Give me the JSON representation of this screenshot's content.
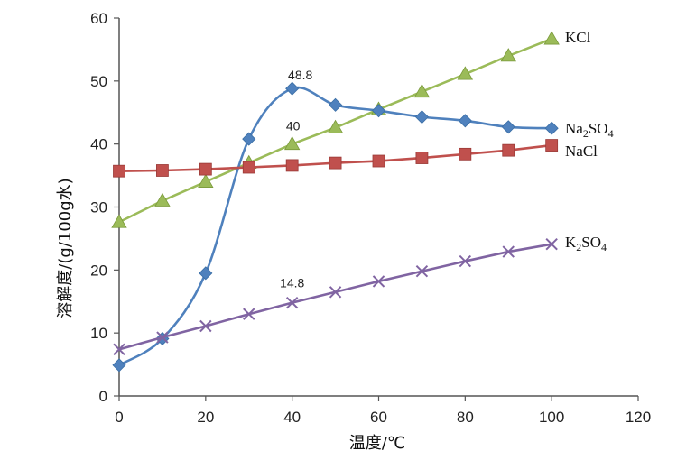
{
  "chart_data": {
    "type": "line",
    "title": "",
    "xlabel": "温度/℃",
    "ylabel": "溶解度/(g/100g水)",
    "xlim": [
      0,
      120
    ],
    "ylim": [
      0,
      60
    ],
    "xticks": [
      0,
      20,
      40,
      60,
      80,
      100,
      120
    ],
    "yticks": [
      0,
      10,
      20,
      30,
      40,
      50,
      60
    ],
    "grid": false,
    "series": [
      {
        "name": "KCl",
        "label_main": "KCl",
        "sub1": "",
        "mid": "",
        "sub2": "",
        "color": "#9BBB59",
        "marker": "triangle",
        "x": [
          0,
          10,
          20,
          30,
          40,
          50,
          60,
          70,
          80,
          90,
          100
        ],
        "y": [
          27.6,
          31.0,
          34.0,
          37.0,
          40.0,
          42.6,
          45.5,
          48.3,
          51.1,
          54.0,
          56.7
        ]
      },
      {
        "name": "Na2SO4",
        "label_main": "Na",
        "sub1": "2",
        "mid": "SO",
        "sub2": "4",
        "color": "#4F81BD",
        "marker": "diamond",
        "smooth": true,
        "x": [
          0,
          10,
          20,
          30,
          40,
          50,
          60,
          70,
          80,
          90,
          100
        ],
        "y": [
          4.9,
          9.1,
          19.5,
          40.8,
          48.8,
          46.2,
          45.3,
          44.3,
          43.7,
          42.7,
          42.5
        ]
      },
      {
        "name": "NaCl",
        "label_main": "NaCl",
        "sub1": "",
        "mid": "",
        "sub2": "",
        "color": "#C0504D",
        "marker": "square",
        "x": [
          0,
          10,
          20,
          30,
          40,
          50,
          60,
          70,
          80,
          90,
          100
        ],
        "y": [
          35.7,
          35.8,
          36.0,
          36.3,
          36.6,
          37.0,
          37.3,
          37.8,
          38.4,
          39.0,
          39.8
        ]
      },
      {
        "name": "K2SO4",
        "label_main": "K",
        "sub1": "2",
        "mid": "SO",
        "sub2": "4",
        "color": "#8064A2",
        "marker": "x",
        "x": [
          0,
          10,
          20,
          30,
          40,
          50,
          60,
          70,
          80,
          90,
          100
        ],
        "y": [
          7.4,
          9.3,
          11.1,
          13.0,
          14.8,
          16.5,
          18.2,
          19.8,
          21.4,
          22.9,
          24.1
        ]
      }
    ],
    "annotations": [
      {
        "text": "48.8",
        "x": 40,
        "y": 48.8
      },
      {
        "text": "40",
        "x": 40,
        "y": 40
      },
      {
        "text": "14.8",
        "x": 40,
        "y": 14.8
      }
    ]
  }
}
